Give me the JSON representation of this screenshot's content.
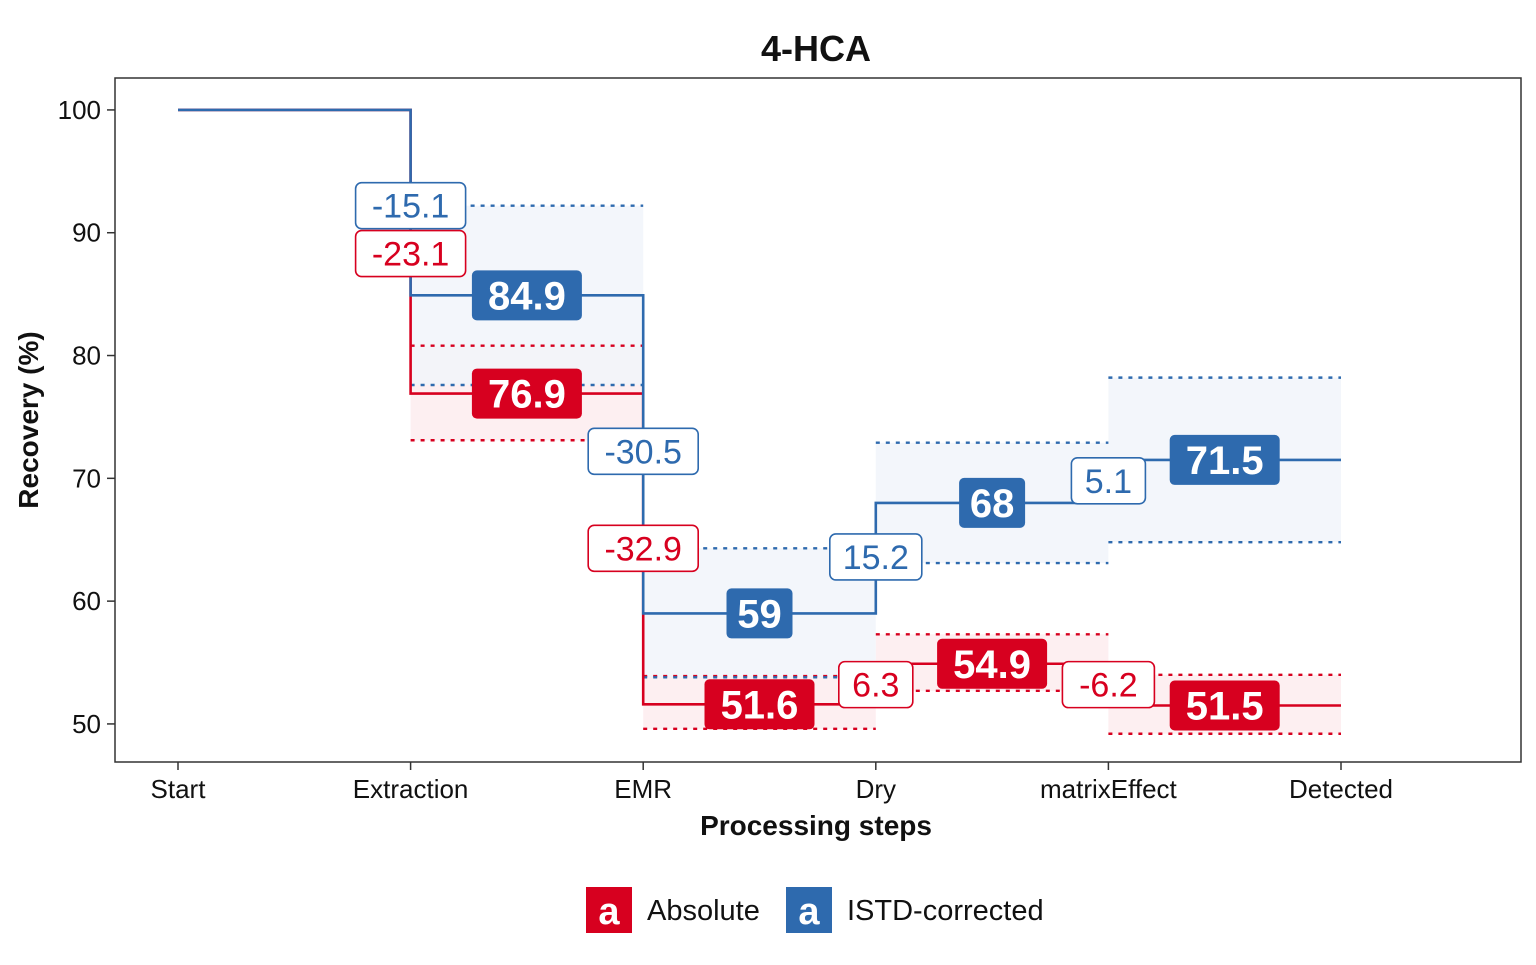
{
  "chart_data": {
    "type": "line",
    "title": "4-HCA",
    "xlabel": "Processing steps",
    "ylabel": "Recovery (%)",
    "categories": [
      "Start",
      "Extraction",
      "EMR",
      "Dry",
      "matrixEffect",
      "Detected"
    ],
    "yticks": [
      50,
      60,
      70,
      80,
      90,
      100
    ],
    "ylim": [
      46.9,
      102.6
    ],
    "grid": false,
    "legend_position": "bottom",
    "legend_key_glyph": "a",
    "series": [
      {
        "name": "Absolute",
        "color": "#D7001F",
        "band_color": "#FDECEE",
        "values": [
          100,
          76.9,
          51.6,
          54.9,
          51.5,
          51.5
        ],
        "value_labels": [
          "",
          "76.9",
          "51.6",
          "54.9",
          "51.5"
        ],
        "band_upper": [
          null,
          80.8,
          53.9,
          57.3,
          54.0
        ],
        "band_lower": [
          null,
          73.1,
          49.6,
          52.7,
          49.2
        ],
        "changes": [
          {
            "at_step": 1,
            "label": "-23.1",
            "y": 88.3
          },
          {
            "at_step": 2,
            "label": "-32.9",
            "y": 64.3
          },
          {
            "at_step": 3,
            "label": "6.3",
            "y": 53.2
          },
          {
            "at_step": 4,
            "label": "-6.2",
            "y": 53.2
          }
        ]
      },
      {
        "name": "ISTD-corrected",
        "color": "#2E6AAE",
        "band_color": "#F1F5FA",
        "values": [
          100,
          84.9,
          59.0,
          68.0,
          71.5,
          71.5
        ],
        "value_labels": [
          "",
          "84.9",
          "59",
          "68",
          "71.5"
        ],
        "band_upper": [
          null,
          92.2,
          64.3,
          72.9,
          78.2
        ],
        "band_lower": [
          null,
          77.6,
          53.8,
          63.1,
          64.8
        ],
        "changes": [
          {
            "at_step": 1,
            "label": "-15.1",
            "y": 92.2
          },
          {
            "at_step": 2,
            "label": "-30.5",
            "y": 72.2
          },
          {
            "at_step": 3,
            "label": "15.2",
            "y": 63.6
          },
          {
            "at_step": 4,
            "label": "5.1",
            "y": 69.8
          }
        ]
      }
    ]
  }
}
